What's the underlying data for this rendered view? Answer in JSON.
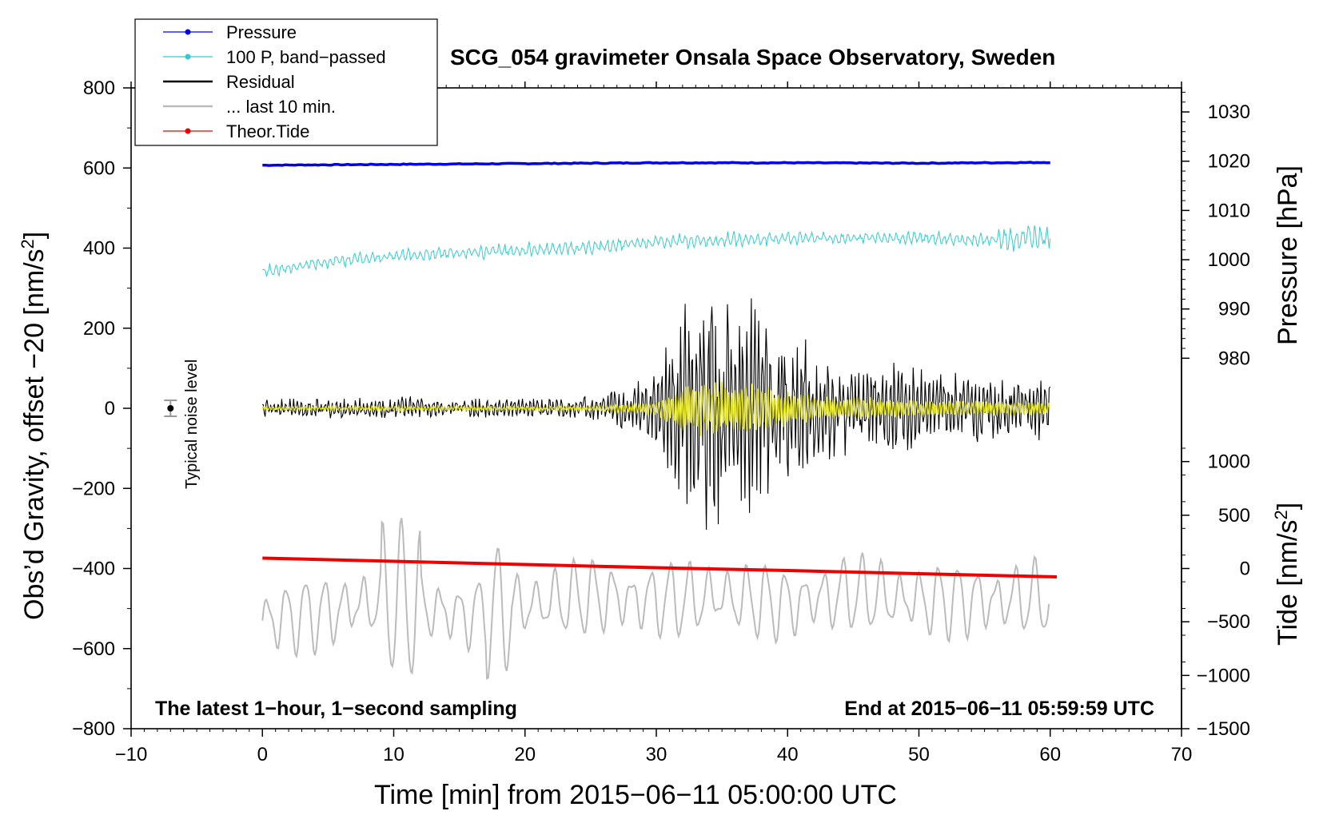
{
  "chart_data": {
    "type": "line",
    "title": "SCG_054 gravimeter Onsala Space Observatory, Sweden",
    "xlabel": "Time [min] from 2015−06−11 05:00:00 UTC",
    "ylabel_left": "Obs’d Gravity, offset −20 [nm/s",
    "ylabel_left_sup": "2",
    "ylabel_left_end": "]",
    "ylabel_right_pressure": "Pressure [hPa]",
    "ylabel_right_tide": "Tide [nm/s",
    "ylabel_right_tide_sup": "2",
    "ylabel_right_tide_end": "]",
    "xlim": [
      -10,
      70
    ],
    "ylim": [
      -800,
      800
    ],
    "x_ticks": [
      {
        "value": -10,
        "label": "−10"
      },
      {
        "value": 0,
        "label": "0"
      },
      {
        "value": 10,
        "label": "10"
      },
      {
        "value": 20,
        "label": "20"
      },
      {
        "value": 30,
        "label": "30"
      },
      {
        "value": 40,
        "label": "40"
      },
      {
        "value": 50,
        "label": "50"
      },
      {
        "value": 60,
        "label": "60"
      },
      {
        "value": 70,
        "label": "70"
      }
    ],
    "y_ticks": [
      {
        "value": 800,
        "label": "800"
      },
      {
        "value": 600,
        "label": "600"
      },
      {
        "value": 400,
        "label": "400"
      },
      {
        "value": 200,
        "label": "200"
      },
      {
        "value": 0,
        "label": "0"
      },
      {
        "value": -200,
        "label": "−200"
      },
      {
        "value": -400,
        "label": "−400"
      },
      {
        "value": -600,
        "label": "−600"
      },
      {
        "value": -800,
        "label": "−800"
      }
    ],
    "pressure_axis": {
      "unit": "hPa",
      "ticks": [
        {
          "value": 1030,
          "gravity": 740,
          "label": "1030"
        },
        {
          "value": 1020,
          "gravity": 617,
          "label": "1020"
        },
        {
          "value": 1010,
          "gravity": 494,
          "label": "1010"
        },
        {
          "value": 1000,
          "gravity": 371,
          "label": "1000"
        },
        {
          "value": 990,
          "gravity": 248,
          "label": "990"
        },
        {
          "value": 980,
          "gravity": 125,
          "label": "980"
        }
      ]
    },
    "tide_axis": {
      "unit": "nm/s2",
      "ticks": [
        {
          "value": 1000,
          "gravity": -133,
          "label": "1000"
        },
        {
          "value": 500,
          "gravity": -267,
          "label": "500"
        },
        {
          "value": 0,
          "gravity": -400,
          "label": "0"
        },
        {
          "value": -500,
          "gravity": -533,
          "label": "−500"
        },
        {
          "value": -1000,
          "gravity": -667,
          "label": "−1000"
        },
        {
          "value": -1500,
          "gravity": -800,
          "label": "−1500"
        }
      ]
    },
    "series": [
      {
        "name": "Pressure",
        "color": "#0000ee",
        "x": [
          0,
          10,
          20,
          30,
          40,
          50,
          60
        ],
        "values": [
          607,
          609,
          611,
          613,
          613,
          612,
          614
        ]
      },
      {
        "name": "100 P, band−passed",
        "color": "#33cccc",
        "x": [
          0,
          5,
          10,
          15,
          20,
          25,
          30,
          35,
          40,
          45,
          50,
          55,
          60
        ],
        "values": [
          340,
          368,
          380,
          388,
          395,
          402,
          415,
          420,
          425,
          425,
          425,
          420,
          430
        ]
      },
      {
        "name": "Residual",
        "color": "#000000",
        "x": [
          0,
          10,
          20,
          25,
          28,
          30,
          31,
          32,
          33,
          35,
          37,
          38,
          39,
          40,
          42,
          44,
          46,
          48,
          50,
          52,
          55,
          58,
          60
        ],
        "amplitude": [
          22,
          28,
          25,
          30,
          60,
          95,
          180,
          300,
          320,
          330,
          300,
          280,
          240,
          220,
          170,
          140,
          140,
          120,
          100,
          95,
          90,
          85,
          80
        ]
      },
      {
        "name": "... last 10 min.",
        "color": "#bbbbbb",
        "x": [
          0,
          5,
          10,
          15,
          20,
          25,
          30,
          35,
          40,
          45,
          50,
          55,
          60
        ],
        "values": [
          -530,
          -510,
          -470,
          -520,
          -490,
          -470,
          -480,
          -470,
          -490,
          -460,
          -480,
          -480,
          -470
        ]
      },
      {
        "name": "Theor.Tide",
        "color": "#ee0000",
        "x": [
          0,
          10,
          20,
          30,
          40,
          50,
          60.5
        ],
        "values": [
          -374,
          -382,
          -390,
          -398,
          -405,
          -413,
          -421
        ]
      }
    ],
    "highlight_series": {
      "name": "Residual (band-passed)",
      "color": "#dddd22"
    },
    "legend": {
      "placement": "top-left",
      "entries": [
        {
          "label": "Pressure",
          "color": "#0000ee",
          "marker": true
        },
        {
          "label": "100 P, band−passed",
          "color": "#33cccc",
          "marker": true
        },
        {
          "label": "Residual",
          "color": "#000000",
          "marker": false
        },
        {
          "label": "... last 10 min.",
          "color": "#bbbbbb",
          "marker": false
        },
        {
          "label": "Theor.Tide",
          "color": "#ee0000",
          "marker": true
        }
      ]
    },
    "noise_level": {
      "x": -7,
      "y": 0,
      "error": 20,
      "label": "Typical noise level"
    },
    "annotations": {
      "bottom_left": "The latest 1−hour, 1−second sampling",
      "bottom_right": "End at 2015−06−11 05:59:59 UTC"
    }
  }
}
